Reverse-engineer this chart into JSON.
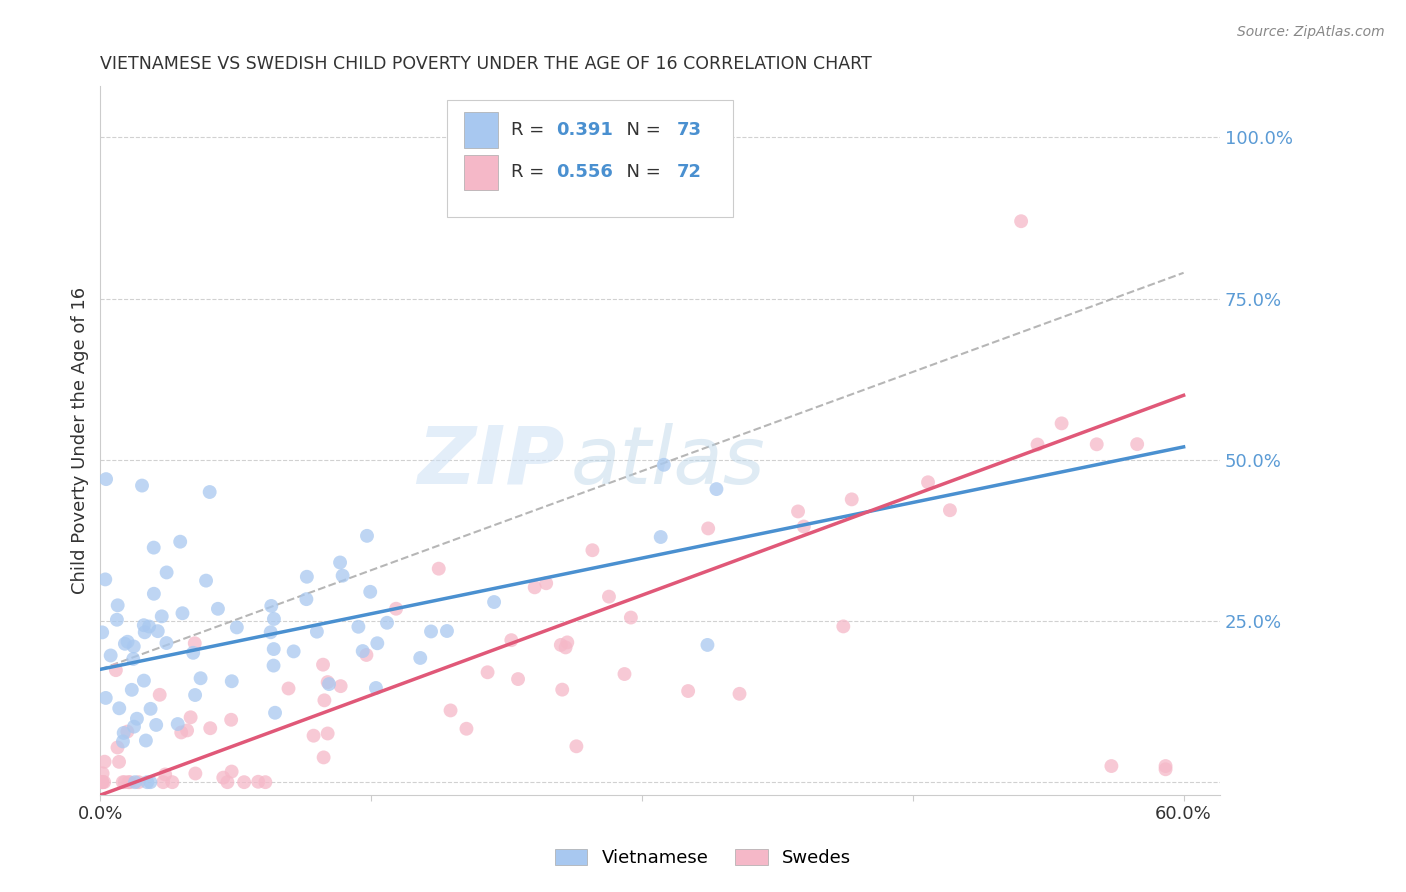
{
  "title": "VIETNAMESE VS SWEDISH CHILD POVERTY UNDER THE AGE OF 16 CORRELATION CHART",
  "source": "Source: ZipAtlas.com",
  "ylabel": "Child Poverty Under the Age of 16",
  "xlim": [
    0.0,
    0.62
  ],
  "ylim": [
    -0.02,
    1.08
  ],
  "xticks": [
    0.0,
    0.15,
    0.3,
    0.45,
    0.6
  ],
  "xticklabels": [
    "0.0%",
    "",
    "",
    "",
    "60.0%"
  ],
  "ytick_positions": [
    0.0,
    0.25,
    0.5,
    0.75,
    1.0
  ],
  "ytick_labels": [
    "",
    "25.0%",
    "50.0%",
    "75.0%",
    "100.0%"
  ],
  "watermark_zip": "ZIP",
  "watermark_atlas": "atlas",
  "blue_scatter_color": "#a8c8f0",
  "pink_scatter_color": "#f5b8c8",
  "blue_line_color": "#4a90d0",
  "pink_line_color": "#e05878",
  "dashed_line_color": "#aaaaaa",
  "grid_color": "#cccccc",
  "background_color": "#ffffff",
  "title_color": "#333333",
  "right_label_color": "#5b9bd5",
  "legend_box_color": "#ffffff",
  "legend_border_color": "#cccccc",
  "source_color": "#888888",
  "axis_color": "#cccccc",
  "marker_size": 100,
  "blue_line_x0": 0.0,
  "blue_line_y0": 0.175,
  "blue_line_x1": 0.6,
  "blue_line_y1": 0.52,
  "pink_line_x0": 0.0,
  "pink_line_y0": -0.02,
  "pink_line_x1": 0.6,
  "pink_line_y1": 0.6,
  "dash_line_x0": 0.0,
  "dash_line_y0": 0.175,
  "dash_line_x1": 0.6,
  "dash_line_y1": 0.79
}
